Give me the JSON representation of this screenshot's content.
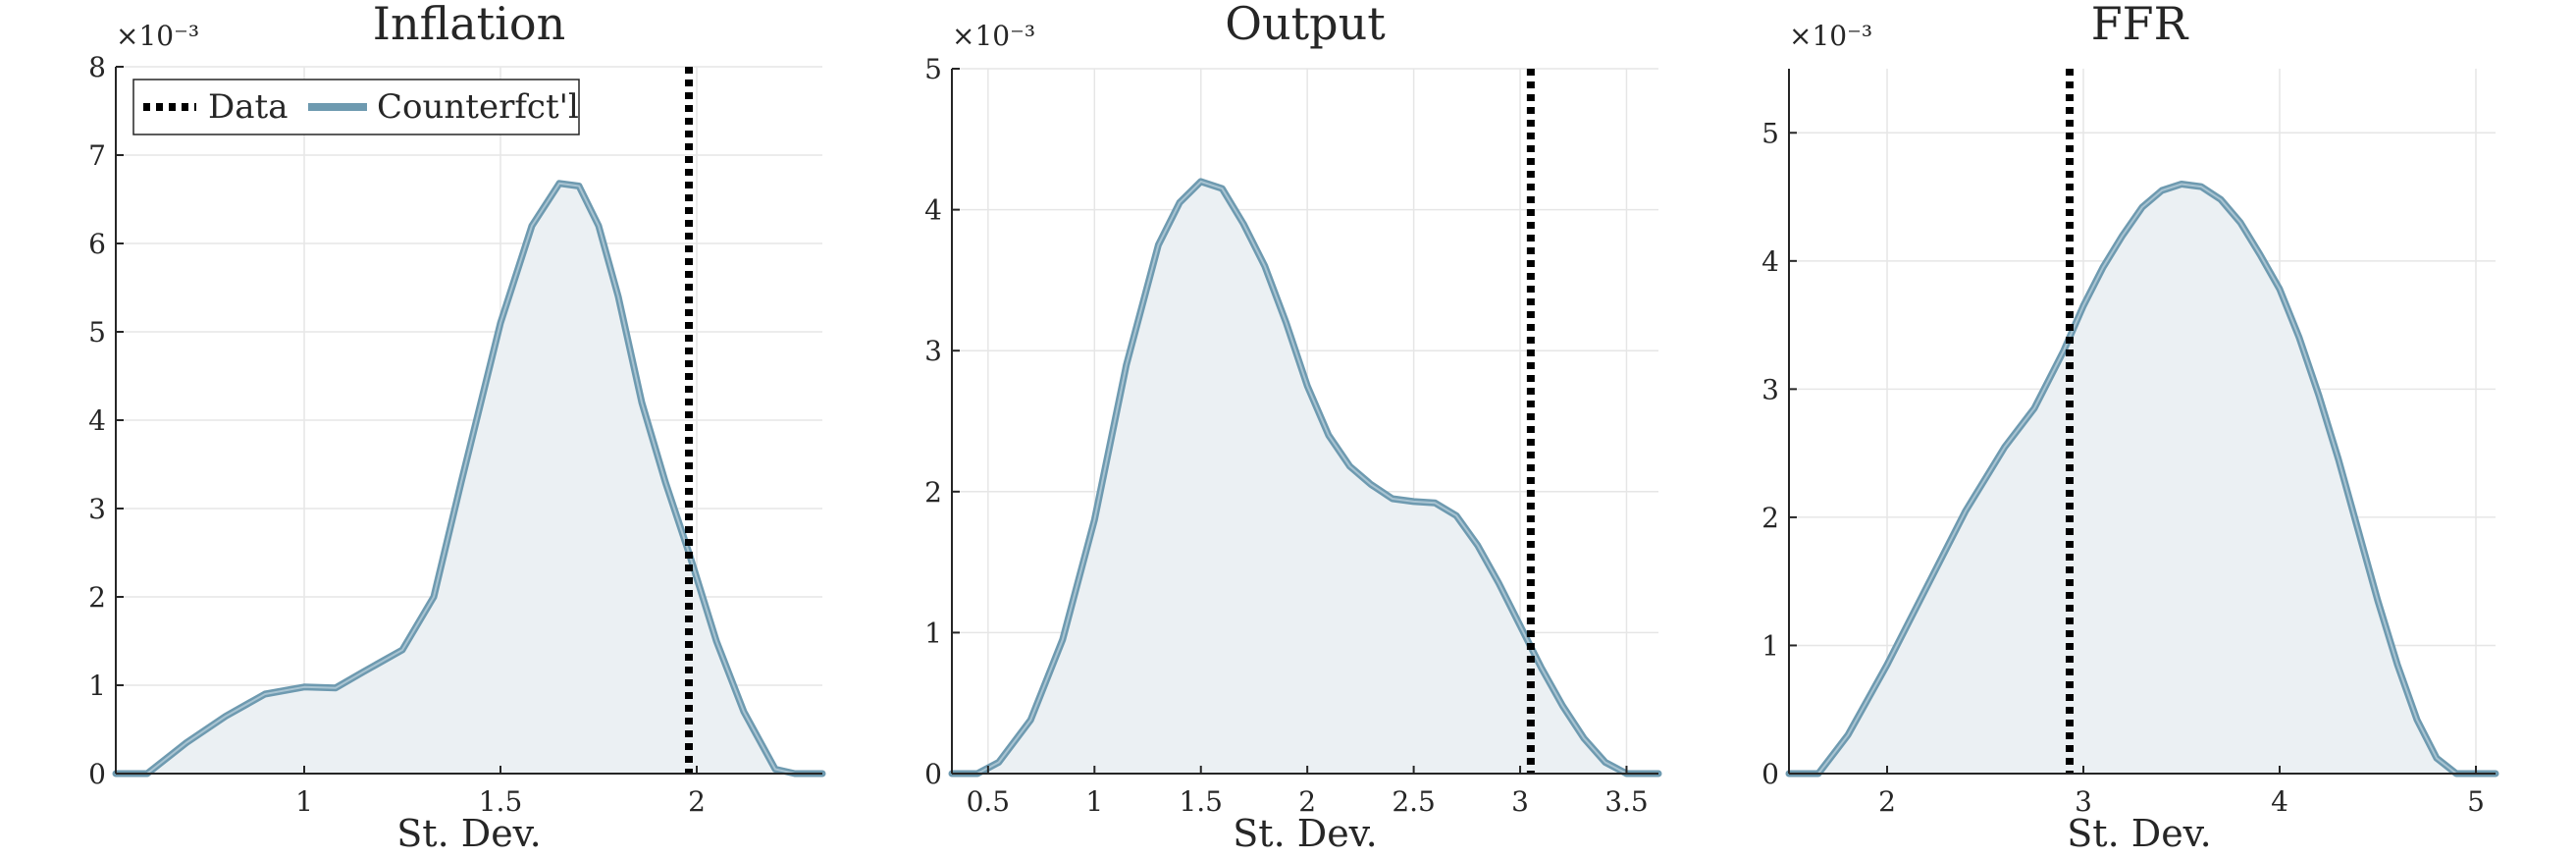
{
  "figure": {
    "legend_placement": "top-left of first panel"
  },
  "legend": {
    "entries": [
      {
        "label": "Data",
        "style": "dotted",
        "color": "#000000"
      },
      {
        "label": "Counterfct'l",
        "style": "solid",
        "color": "#6e9ab0"
      }
    ]
  },
  "colors": {
    "fill": "#ebf0f3",
    "line": "#6e9ab0",
    "data_line": "#000000",
    "grid": "#e6e6e6",
    "axis": "#262626"
  },
  "chart_data": [
    {
      "type": "area",
      "title": "Inflation",
      "xlabel": "St. Dev.",
      "ylabel": "",
      "xlim": [
        0.52,
        2.32
      ],
      "ylim": [
        0,
        8
      ],
      "y_exponent": "×10⁻³",
      "xticks": [
        1,
        1.5,
        2
      ],
      "xtick_labels": [
        "1",
        "1.5",
        "2"
      ],
      "yticks": [
        0,
        1,
        2,
        3,
        4,
        5,
        6,
        7,
        8
      ],
      "ytick_labels": [
        "0",
        "1",
        "2",
        "3",
        "4",
        "5",
        "6",
        "7",
        "8"
      ],
      "grid": true,
      "data_line_x": 1.98,
      "series": [
        {
          "name": "Counterfct'l",
          "x": [
            0.52,
            0.6,
            0.7,
            0.8,
            0.9,
            1.0,
            1.08,
            1.15,
            1.25,
            1.33,
            1.4,
            1.5,
            1.58,
            1.65,
            1.7,
            1.75,
            1.8,
            1.86,
            1.92,
            1.98,
            2.05,
            2.12,
            2.2,
            2.25,
            2.32
          ],
          "y": [
            0,
            0,
            0.35,
            0.65,
            0.9,
            0.98,
            0.97,
            1.15,
            1.4,
            2.0,
            3.3,
            5.1,
            6.2,
            6.68,
            6.65,
            6.2,
            5.4,
            4.2,
            3.3,
            2.5,
            1.5,
            0.7,
            0.05,
            0,
            0
          ]
        }
      ]
    },
    {
      "type": "area",
      "title": "Output",
      "xlabel": "St. Dev.",
      "ylabel": "",
      "xlim": [
        0.33,
        3.65
      ],
      "ylim": [
        0,
        5
      ],
      "y_exponent": "×10⁻³",
      "xticks": [
        0.5,
        1,
        1.5,
        2,
        2.5,
        3,
        3.5
      ],
      "xtick_labels": [
        "0.5",
        "1",
        "1.5",
        "2",
        "2.5",
        "3",
        "3.5"
      ],
      "yticks": [
        0,
        1,
        2,
        3,
        4,
        5
      ],
      "ytick_labels": [
        "0",
        "1",
        "2",
        "3",
        "4",
        "5"
      ],
      "grid": true,
      "data_line_x": 3.05,
      "series": [
        {
          "name": "Counterfct'l",
          "x": [
            0.33,
            0.45,
            0.55,
            0.7,
            0.85,
            1.0,
            1.15,
            1.3,
            1.4,
            1.5,
            1.6,
            1.7,
            1.8,
            1.9,
            2.0,
            2.1,
            2.2,
            2.3,
            2.4,
            2.5,
            2.6,
            2.7,
            2.8,
            2.9,
            3.0,
            3.1,
            3.2,
            3.3,
            3.4,
            3.5,
            3.6,
            3.65
          ],
          "y": [
            0,
            0,
            0.08,
            0.38,
            0.95,
            1.8,
            2.9,
            3.75,
            4.05,
            4.2,
            4.15,
            3.9,
            3.6,
            3.2,
            2.75,
            2.4,
            2.18,
            2.05,
            1.95,
            1.93,
            1.92,
            1.83,
            1.62,
            1.35,
            1.05,
            0.75,
            0.48,
            0.25,
            0.08,
            0,
            0,
            0
          ]
        }
      ]
    },
    {
      "type": "area",
      "title": "FFR",
      "xlabel": "St. Dev.",
      "ylabel": "",
      "xlim": [
        1.5,
        5.1
      ],
      "ylim": [
        0,
        5.5
      ],
      "y_exponent": "×10⁻³",
      "xticks": [
        2,
        3,
        4,
        5
      ],
      "xtick_labels": [
        "2",
        "3",
        "4",
        "5"
      ],
      "yticks": [
        0,
        1,
        2,
        3,
        4,
        5
      ],
      "ytick_labels": [
        "0",
        "1",
        "2",
        "3",
        "4",
        "5"
      ],
      "grid": true,
      "data_line_x": 2.93,
      "series": [
        {
          "name": "Counterfct'l",
          "x": [
            1.5,
            1.65,
            1.8,
            2.0,
            2.2,
            2.4,
            2.6,
            2.75,
            2.9,
            3.0,
            3.1,
            3.2,
            3.3,
            3.4,
            3.5,
            3.6,
            3.7,
            3.8,
            3.9,
            4.0,
            4.1,
            4.2,
            4.3,
            4.4,
            4.5,
            4.6,
            4.7,
            4.8,
            4.9,
            5.0,
            5.1
          ],
          "y": [
            0,
            0,
            0.3,
            0.85,
            1.45,
            2.05,
            2.55,
            2.85,
            3.3,
            3.65,
            3.95,
            4.2,
            4.42,
            4.55,
            4.6,
            4.58,
            4.48,
            4.3,
            4.05,
            3.78,
            3.4,
            2.95,
            2.45,
            1.9,
            1.35,
            0.85,
            0.42,
            0.12,
            0,
            0,
            0
          ]
        }
      ]
    }
  ]
}
